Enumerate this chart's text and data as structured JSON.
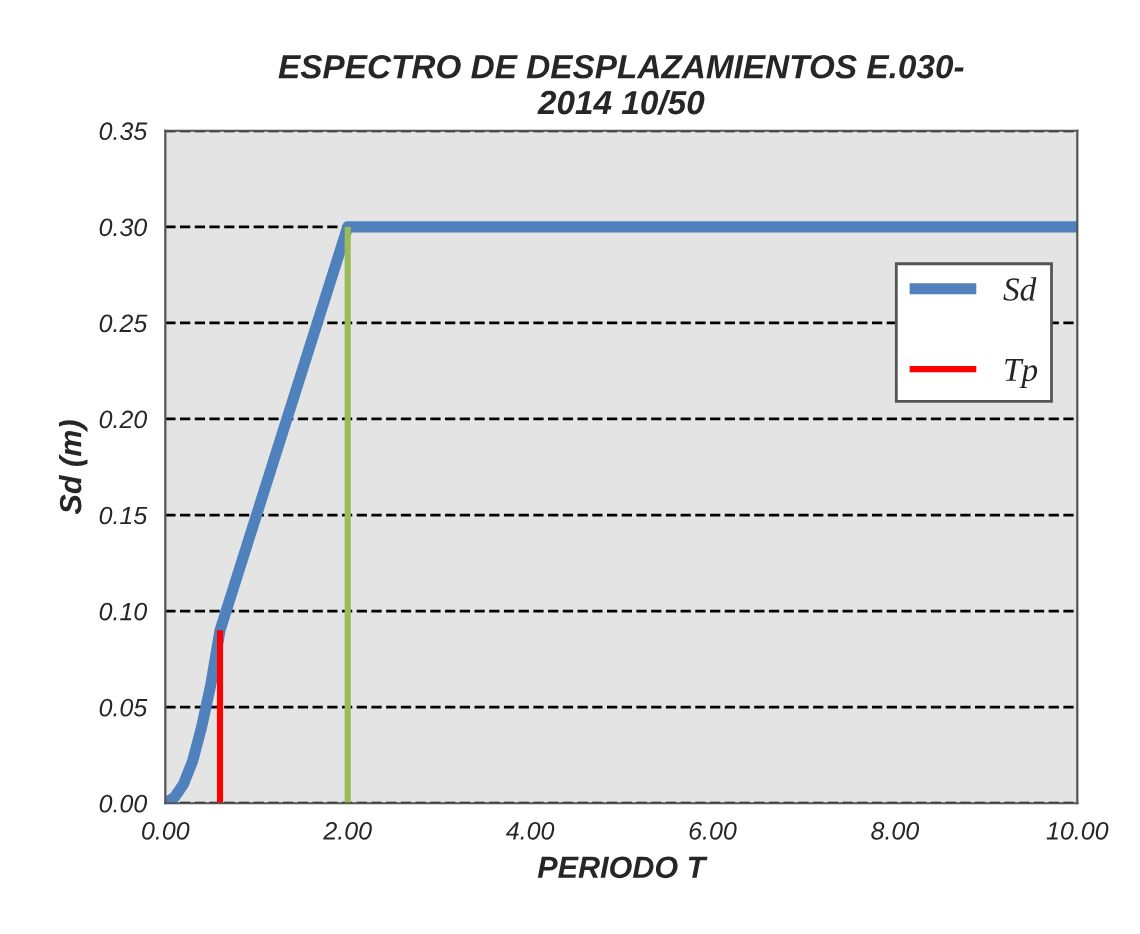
{
  "chart_data": {
    "type": "line",
    "title": "ESPECTRO DE DESPLAZAMIENTOS E.030-\n2014 10/50",
    "xlabel": "PERIODO T",
    "ylabel": "Sd (m)",
    "xlim": [
      0,
      10
    ],
    "ylim": [
      0,
      0.35
    ],
    "xticks": [
      {
        "value": 0,
        "label": "0.00"
      },
      {
        "value": 2,
        "label": "2.00"
      },
      {
        "value": 4,
        "label": "4.00"
      },
      {
        "value": 6,
        "label": "6.00"
      },
      {
        "value": 8,
        "label": "8.00"
      },
      {
        "value": 10,
        "label": "10.00"
      }
    ],
    "yticks": [
      {
        "value": 0,
        "label": "0.00"
      },
      {
        "value": 0.05,
        "label": "0.05"
      },
      {
        "value": 0.1,
        "label": "0.10"
      },
      {
        "value": 0.15,
        "label": "0.15"
      },
      {
        "value": 0.2,
        "label": "0.20"
      },
      {
        "value": 0.25,
        "label": "0.25"
      },
      {
        "value": 0.3,
        "label": "0.30"
      },
      {
        "value": 0.35,
        "label": "0.35"
      }
    ],
    "grid": "y",
    "legend": "right",
    "line_style": "solid",
    "marker": "none",
    "series": [
      {
        "name": "Sd",
        "color": "#4f81bd",
        "x": [
          0,
          0.1,
          0.2,
          0.3,
          0.4,
          0.5,
          0.6,
          2.0,
          10
        ],
        "values": [
          0,
          0.003,
          0.01,
          0.022,
          0.04,
          0.062,
          0.09,
          0.3,
          0.3
        ]
      },
      {
        "name": "Tp",
        "color": "#ff0000",
        "x": [
          0.6,
          0.6
        ],
        "values": [
          0,
          0.09
        ]
      },
      {
        "color": "#9bbb59",
        "x": [
          2.0,
          2.0
        ],
        "values": [
          0,
          0.3
        ]
      }
    ]
  }
}
